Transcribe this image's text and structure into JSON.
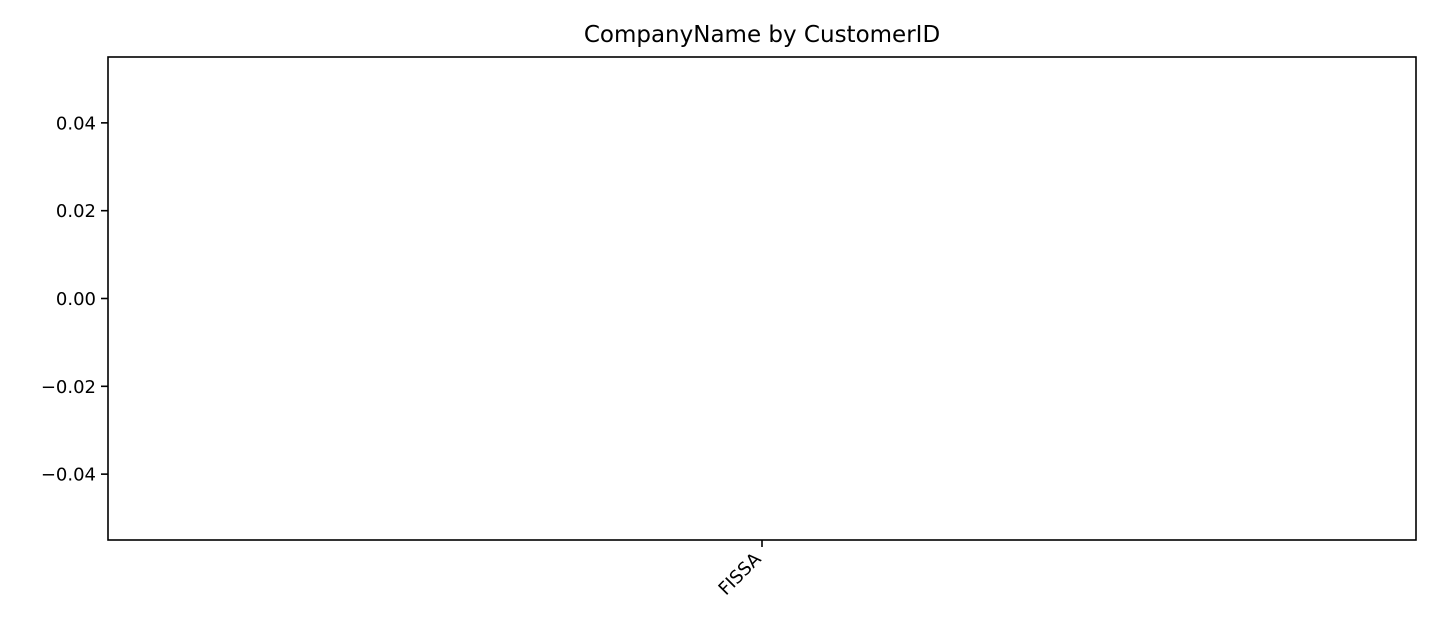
{
  "chart_data": {
    "type": "bar",
    "title": "CompanyName by CustomerID",
    "xlabel": "",
    "ylabel": "",
    "categories": [
      "FISSA"
    ],
    "values": [
      0
    ],
    "ylim": [
      -0.055,
      0.055
    ],
    "yticks": [
      0.04,
      0.02,
      0.0,
      -0.02,
      -0.04
    ],
    "ytick_labels": [
      "0.04",
      "0.02",
      "0.00",
      "−0.02",
      "−0.04"
    ],
    "grid": false,
    "legend": "none",
    "frame_color": "#000000",
    "background": "#ffffff"
  }
}
